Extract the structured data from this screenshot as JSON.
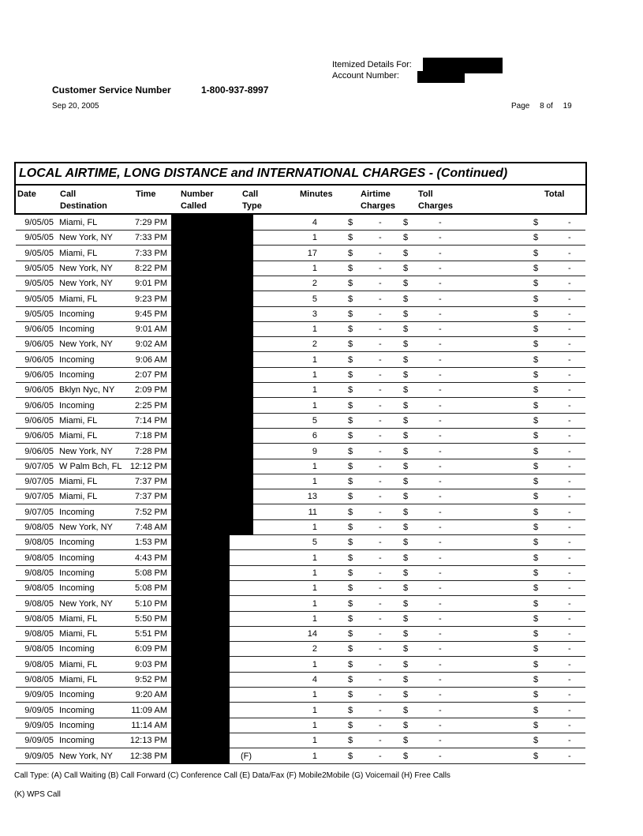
{
  "header": {
    "itemized_label": "Itemized Details For:",
    "account_label": "Account Number:",
    "customer_service_label": "Customer Service Number",
    "customer_service_number": "1-800-937-8997",
    "date": "Sep 20, 2005",
    "page_label": "Page",
    "page_current": "8",
    "page_of": "of",
    "page_total": "19"
  },
  "table": {
    "title": "LOCAL AIRTIME, LONG DISTANCE and INTERNATIONAL CHARGES  - (Continued)",
    "columns": [
      "Date",
      "Call\nDestination",
      "Time",
      "Number\nCalled",
      "Call\nType",
      "Minutes",
      "Airtime\nCharges",
      "Toll\nCharges",
      "Total"
    ],
    "currency": "$",
    "charge_value": "-",
    "rows": [
      [
        "9/05/05",
        "Miami, FL",
        "7:29 PM",
        "",
        "",
        "4"
      ],
      [
        "9/05/05",
        "New York, NY",
        "7:33 PM",
        "",
        "",
        "1"
      ],
      [
        "9/05/05",
        "Miami, FL",
        "7:33 PM",
        "",
        "",
        "17"
      ],
      [
        "9/05/05",
        "New York, NY",
        "8:22 PM",
        "",
        "",
        "1"
      ],
      [
        "9/05/05",
        "New York, NY",
        "9:01 PM",
        "",
        "",
        "2"
      ],
      [
        "9/05/05",
        "Miami, FL",
        "9:23 PM",
        "",
        "",
        "5"
      ],
      [
        "9/05/05",
        "Incoming",
        "9:45 PM",
        "",
        "",
        "3"
      ],
      [
        "9/06/05",
        "Incoming",
        "9:01 AM",
        "",
        "",
        "1"
      ],
      [
        "9/06/05",
        "New York, NY",
        "9:02 AM",
        "",
        "",
        "2"
      ],
      [
        "9/06/05",
        "Incoming",
        "9:06 AM",
        "",
        "",
        "1"
      ],
      [
        "9/06/05",
        "Incoming",
        "2:07 PM",
        "",
        "",
        "1"
      ],
      [
        "9/06/05",
        "Bklyn Nyc, NY",
        "2:09 PM",
        "",
        "",
        "1"
      ],
      [
        "9/06/05",
        "Incoming",
        "2:25 PM",
        "",
        "",
        "1"
      ],
      [
        "9/06/05",
        "Miami, FL",
        "7:14 PM",
        "",
        "",
        "5"
      ],
      [
        "9/06/05",
        "Miami, FL",
        "7:18 PM",
        "",
        "",
        "6"
      ],
      [
        "9/06/05",
        "New York, NY",
        "7:28 PM",
        "",
        "",
        "9"
      ],
      [
        "9/07/05",
        "W Palm Bch, FL",
        "12:12 PM",
        "",
        "",
        "1"
      ],
      [
        "9/07/05",
        "Miami, FL",
        "7:37 PM",
        "",
        "",
        "1"
      ],
      [
        "9/07/05",
        "Miami, FL",
        "7:37 PM",
        "",
        "",
        "13"
      ],
      [
        "9/07/05",
        "Incoming",
        "7:52 PM",
        "",
        "",
        "11"
      ],
      [
        "9/08/05",
        "New York, NY",
        "7:48 AM",
        "",
        "",
        "1"
      ],
      [
        "9/08/05",
        "Incoming",
        "1:53 PM",
        "",
        "",
        "5"
      ],
      [
        "9/08/05",
        "Incoming",
        "4:43 PM",
        "",
        "",
        "1"
      ],
      [
        "9/08/05",
        "Incoming",
        "5:08 PM",
        "",
        "",
        "1"
      ],
      [
        "9/08/05",
        "Incoming",
        "5:08 PM",
        "",
        "",
        "1"
      ],
      [
        "9/08/05",
        "New York, NY",
        "5:10 PM",
        "",
        "",
        "1"
      ],
      [
        "9/08/05",
        "Miami, FL",
        "5:50 PM",
        "",
        "",
        "1"
      ],
      [
        "9/08/05",
        "Miami, FL",
        "5:51 PM",
        "",
        "",
        "14"
      ],
      [
        "9/08/05",
        "Incoming",
        "6:09 PM",
        "",
        "",
        "2"
      ],
      [
        "9/08/05",
        "Miami, FL",
        "9:03 PM",
        "",
        "",
        "1"
      ],
      [
        "9/08/05",
        "Miami, FL",
        "9:52 PM",
        "",
        "",
        "4"
      ],
      [
        "9/09/05",
        "Incoming",
        "9:20 AM",
        "",
        "",
        "1"
      ],
      [
        "9/09/05",
        "Incoming",
        "11:09 AM",
        "",
        "",
        "1"
      ],
      [
        "9/09/05",
        "Incoming",
        "11:14 AM",
        "",
        "",
        "1"
      ],
      [
        "9/09/05",
        "Incoming",
        "12:13 PM",
        "",
        "",
        "1"
      ],
      [
        "9/09/05",
        "New York, NY",
        "12:38 PM",
        "",
        "(F)",
        "1"
      ]
    ]
  },
  "footer": {
    "call_types": "Call Type: (A) Call Waiting (B) Call Forward (C) Conference Call (E) Data/Fax (F) Mobile2Mobile (G) Voicemail (H) Free Calls",
    "call_types_2": "(K) WPS Call"
  }
}
